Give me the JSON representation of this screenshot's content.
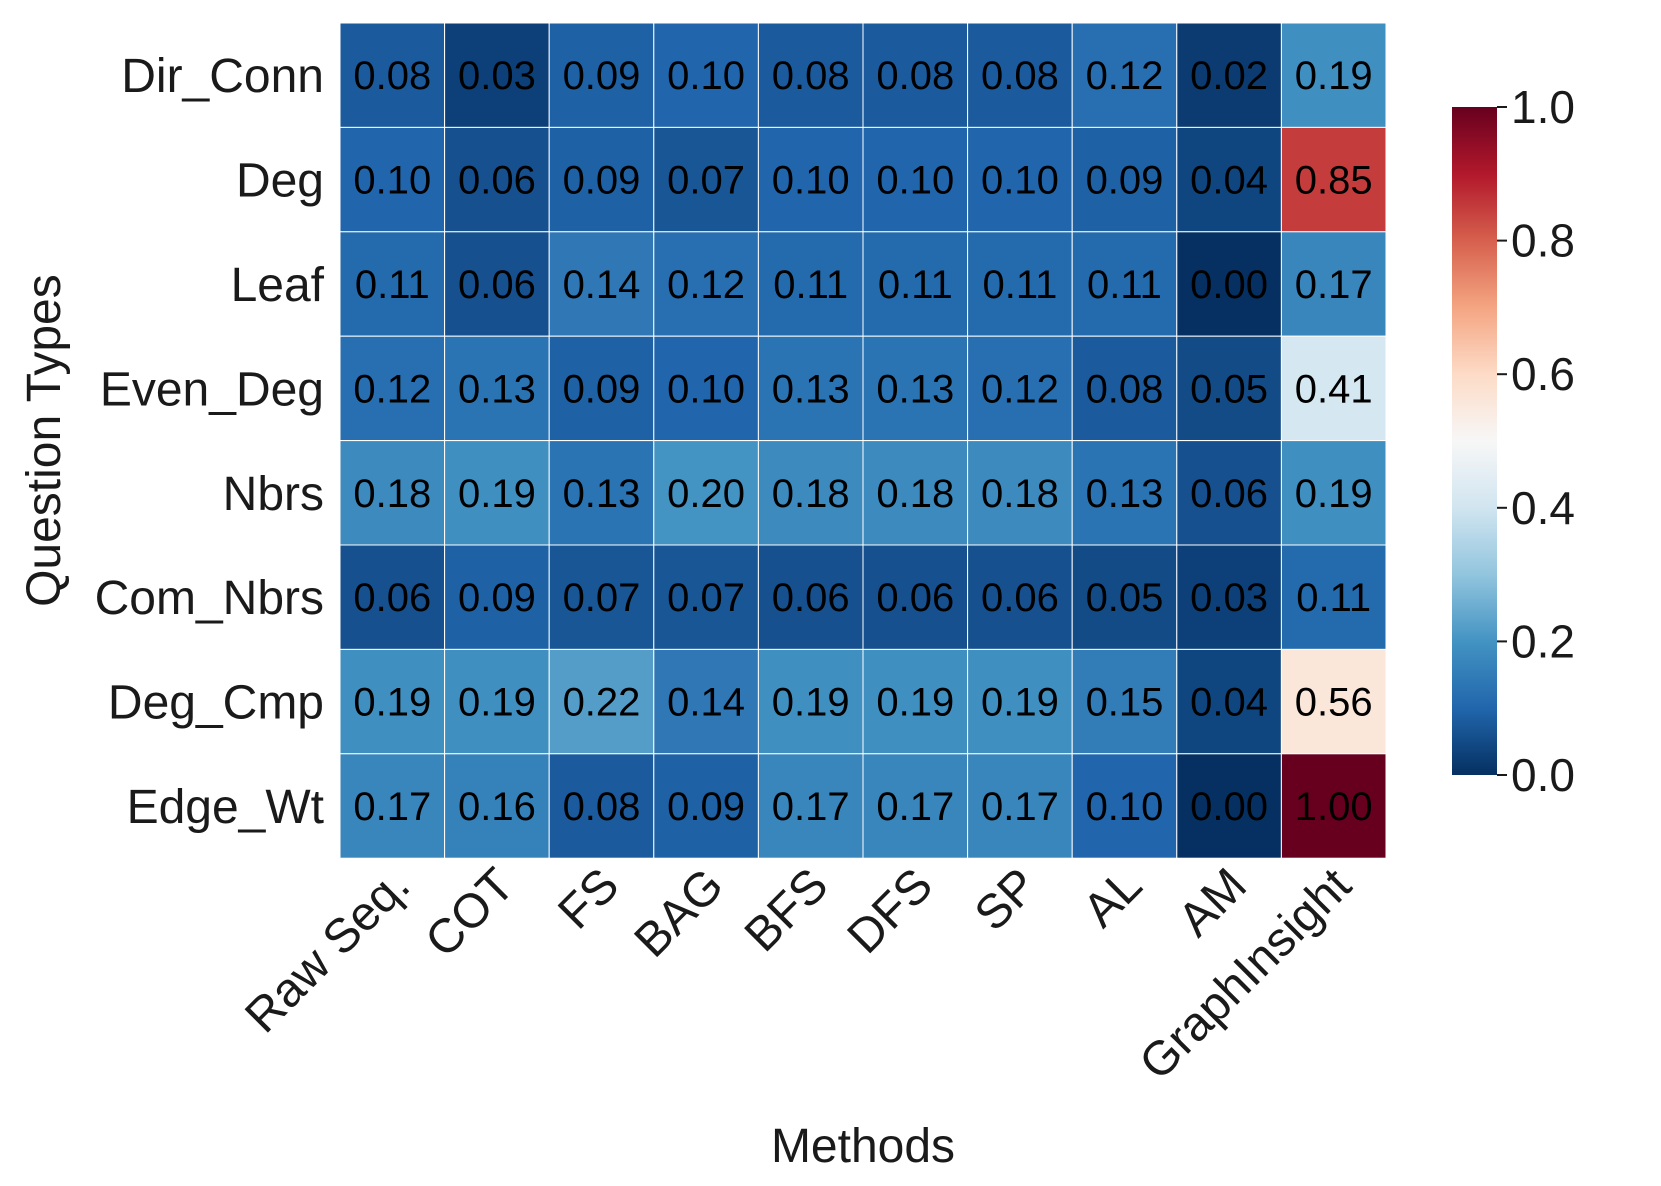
{
  "chart_data": {
    "type": "heatmap",
    "xlabel": "Methods",
    "ylabel": "Question Types",
    "x_categories": [
      "Raw Seq.",
      "COT",
      "FS",
      "BAG",
      "BFS",
      "DFS",
      "SP",
      "AL",
      "AM",
      "GraphInsight"
    ],
    "y_categories": [
      "Dir_Conn",
      "Deg",
      "Leaf",
      "Even_Deg",
      "Nbrs",
      "Com_Nbrs",
      "Deg_Cmp",
      "Edge_Wt"
    ],
    "values": [
      [
        0.08,
        0.03,
        0.09,
        0.1,
        0.08,
        0.08,
        0.08,
        0.12,
        0.02,
        0.19
      ],
      [
        0.1,
        0.06,
        0.09,
        0.07,
        0.1,
        0.1,
        0.1,
        0.09,
        0.04,
        0.85
      ],
      [
        0.11,
        0.06,
        0.14,
        0.12,
        0.11,
        0.11,
        0.11,
        0.11,
        0.0,
        0.17
      ],
      [
        0.12,
        0.13,
        0.09,
        0.1,
        0.13,
        0.13,
        0.12,
        0.08,
        0.05,
        0.41
      ],
      [
        0.18,
        0.19,
        0.13,
        0.2,
        0.18,
        0.18,
        0.18,
        0.13,
        0.06,
        0.19
      ],
      [
        0.06,
        0.09,
        0.07,
        0.07,
        0.06,
        0.06,
        0.06,
        0.05,
        0.03,
        0.11
      ],
      [
        0.19,
        0.19,
        0.22,
        0.14,
        0.19,
        0.19,
        0.19,
        0.15,
        0.04,
        0.56
      ],
      [
        0.17,
        0.16,
        0.08,
        0.09,
        0.17,
        0.17,
        0.17,
        0.1,
        0.0,
        1.0
      ]
    ],
    "value_format": "0.00",
    "vmin": 0.0,
    "vmax": 1.0,
    "colormap": "RdBu_r",
    "colorbar": {
      "ticks": [
        0.0,
        0.2,
        0.4,
        0.6,
        0.8,
        1.0
      ],
      "tick_labels": [
        "0.0",
        "0.2",
        "0.4",
        "0.6",
        "0.8",
        "1.0"
      ],
      "placement": "right"
    },
    "cell_text_color": "#000000",
    "grid_line_color": "#ffffff"
  }
}
